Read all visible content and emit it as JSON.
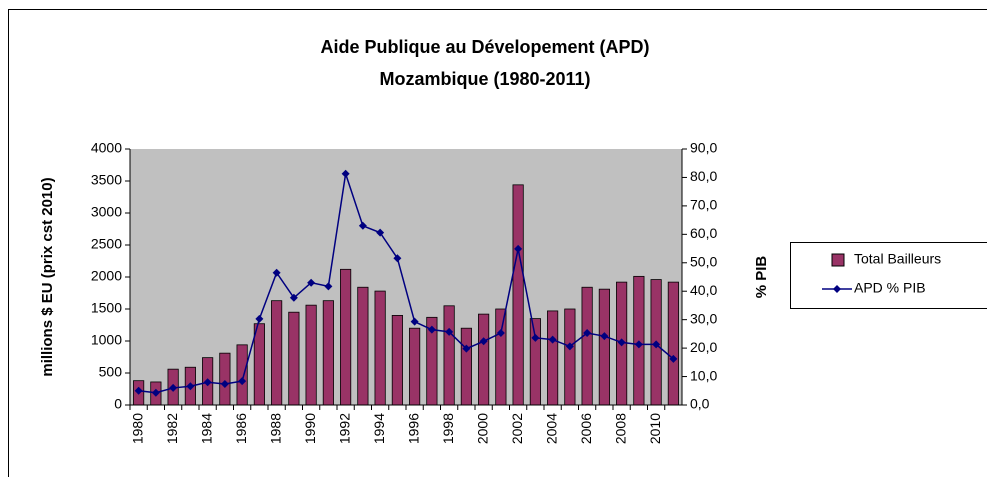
{
  "chart_data": {
    "type": "bar_line",
    "title": "Aide Publique au Dévelopement (APD)",
    "subtitle": "Mozambique (1980-2011)",
    "ylabel": "millions $ EU (prix cst 2010)",
    "y2label": "% PIB",
    "categories": [
      "1980",
      null,
      "1982",
      null,
      "1984",
      null,
      "1986",
      null,
      "1988",
      null,
      "1990",
      null,
      "1992",
      null,
      "1994",
      null,
      "1996",
      null,
      "1998",
      null,
      "2000",
      null,
      "2002",
      null,
      "2004",
      null,
      "2006",
      null,
      "2008",
      null,
      "2010",
      null
    ],
    "series": [
      {
        "name": "Total Bailleurs",
        "type": "bar",
        "color": "#993366",
        "values": [
          380,
          360,
          560,
          590,
          740,
          810,
          940,
          1270,
          1630,
          1450,
          1560,
          1630,
          2120,
          1840,
          1780,
          1400,
          1200,
          1370,
          1550,
          1200,
          1420,
          1500,
          3440,
          1350,
          1470,
          1500,
          1840,
          1810,
          1920,
          2010,
          1960,
          1920
        ]
      },
      {
        "name": "APD % PIB",
        "type": "line",
        "axis": "y2",
        "color": "#000080",
        "values": [
          5.0,
          4.3,
          6.0,
          6.6,
          8.0,
          7.4,
          8.4,
          30.3,
          46.5,
          37.7,
          43.0,
          41.7,
          81.3,
          63.0,
          60.6,
          51.6,
          29.3,
          26.5,
          25.7,
          19.8,
          22.4,
          25.3,
          54.9,
          23.6,
          23.0,
          20.6,
          25.3,
          24.2,
          22.0,
          21.3,
          21.3,
          16.2
        ]
      }
    ],
    "ylim": [
      0,
      4000
    ],
    "yticks": [
      0,
      500,
      1000,
      1500,
      2000,
      2500,
      3000,
      3500,
      4000
    ],
    "y2lim": [
      0,
      90
    ],
    "y2ticks": [
      {
        "value": 0,
        "label": "0,0"
      },
      {
        "value": 10,
        "label": "10,0"
      },
      {
        "value": 20,
        "label": "20,0"
      },
      {
        "value": 30,
        "label": "30,0"
      },
      {
        "value": 40,
        "label": "40,0"
      },
      {
        "value": 50,
        "label": "50,0"
      },
      {
        "value": 60,
        "label": "60,0"
      },
      {
        "value": 70,
        "label": "70,0"
      },
      {
        "value": 80,
        "label": "80,0"
      },
      {
        "value": 90,
        "label": "90,0"
      }
    ],
    "plot_background": "#c0c0c0",
    "legend": "right"
  }
}
